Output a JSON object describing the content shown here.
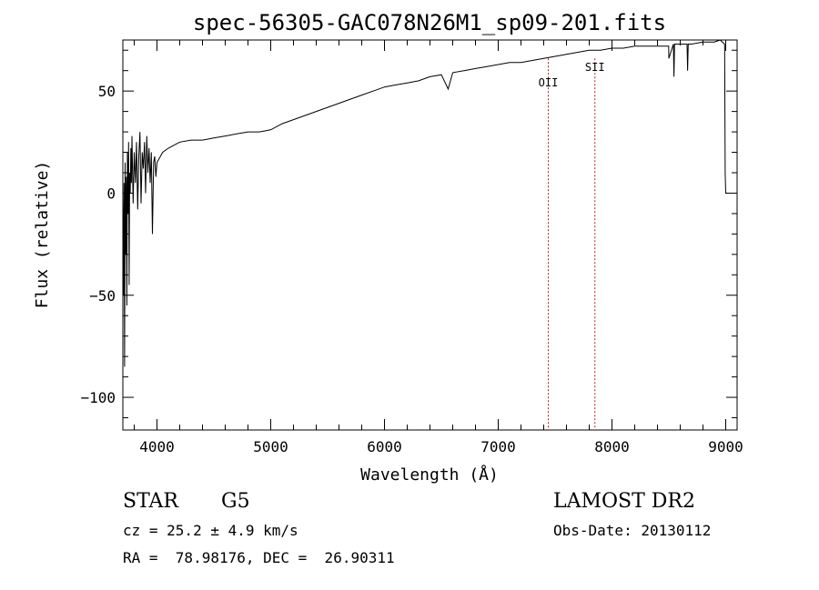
{
  "chart_data": {
    "type": "line",
    "title": "spec-56305-GAC078N26M1_sp09-201.fits",
    "xlabel": "Wavelength (Å)",
    "ylabel": "Flux (relative)",
    "xlim": [
      3700,
      9100
    ],
    "ylim": [
      -116,
      75
    ],
    "xticks": [
      4000,
      5000,
      6000,
      7000,
      8000,
      9000
    ],
    "yticks": [
      -100,
      -50,
      0,
      50
    ],
    "series": [
      {
        "x": [
          3700,
          3705,
          3710,
          3715,
          3720,
          3725,
          3730,
          3735,
          3740,
          3745,
          3750,
          3755,
          3760,
          3765,
          3770,
          3775,
          3780,
          3790,
          3800,
          3810,
          3820,
          3830,
          3840,
          3850,
          3860,
          3870,
          3880,
          3890,
          3900,
          3910,
          3920,
          3930,
          3940,
          3950,
          3960,
          3970,
          3980,
          3990,
          4000,
          4050,
          4100,
          4200,
          4300,
          4400,
          4500,
          4600,
          4700,
          4800,
          4900,
          5000,
          5100,
          5200,
          5300,
          5400,
          5500,
          5600,
          5700,
          5800,
          5900,
          6000,
          6100,
          6200,
          6300,
          6400,
          6500,
          6560,
          6600,
          6700,
          6800,
          6900,
          7000,
          7100,
          7200,
          7300,
          7400,
          7500,
          7600,
          7700,
          7800,
          7900,
          8000,
          8100,
          8200,
          8300,
          8400,
          8498,
          8500,
          8540,
          8545,
          8550,
          8600,
          8660,
          8665,
          8670,
          8700,
          8800,
          8900,
          8950,
          8990,
          8995,
          9000,
          9005
        ],
        "y": [
          -2,
          -50,
          5,
          -85,
          15,
          -30,
          8,
          -55,
          20,
          -10,
          25,
          -45,
          10,
          0,
          22,
          5,
          28,
          -5,
          20,
          5,
          25,
          -8,
          18,
          30,
          -5,
          20,
          12,
          25,
          0,
          28,
          10,
          22,
          5,
          20,
          -20,
          15,
          18,
          8,
          15,
          20,
          22,
          25,
          26,
          26,
          27,
          28,
          29,
          30,
          30,
          31,
          34,
          36,
          38,
          40,
          42,
          44,
          46,
          48,
          50,
          52,
          53,
          54,
          55,
          57,
          58,
          51,
          59,
          60,
          61,
          62,
          63,
          64,
          64,
          65,
          66,
          67,
          68,
          69,
          70,
          70,
          71,
          71,
          72,
          72,
          72,
          72,
          66,
          73,
          57,
          73,
          73,
          73,
          60,
          73,
          73,
          74,
          74,
          75,
          73,
          10,
          0,
          0
        ]
      }
    ],
    "annotations": [
      {
        "label": "OII",
        "x": 7440
      },
      {
        "label": "SII",
        "x": 7850
      }
    ],
    "grid": false
  },
  "info": {
    "object_class": "STAR",
    "subclass": "G5",
    "survey": "LAMOST DR2",
    "redshift": "cz = 25.2 ± 4.9 km/s",
    "obs_date": "Obs-Date: 20130112",
    "coords": "RA =  78.98176, DEC =  26.90311"
  }
}
